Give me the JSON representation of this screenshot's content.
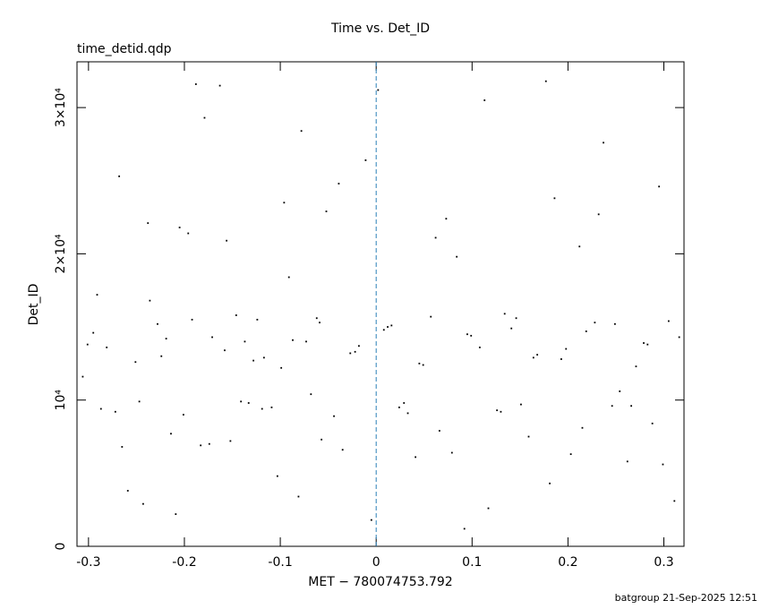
{
  "chart_data": {
    "type": "scatter",
    "title": "Time vs. Det_ID",
    "subtitle": "time_detid.qdp",
    "xlabel": "MET − 780074753.792",
    "ylabel": "Det_ID",
    "annotation": "batgroup 21-Sep-2025 12:51",
    "xlim": [
      -0.312,
      0.321
    ],
    "ylim": [
      0,
      33130
    ],
    "xticks": [
      -0.3,
      -0.2,
      -0.1,
      0,
      0.1,
      0.2,
      0.3
    ],
    "yticks": [
      0,
      {
        "value": 10000,
        "label": "10⁴"
      },
      {
        "value": 20000,
        "label": "2×10⁴"
      },
      {
        "value": 30000,
        "label": "3×10⁴"
      }
    ],
    "reference_line": {
      "x": 0,
      "color": "#2a7fb8"
    },
    "color": "#000000",
    "x": [
      -0.301,
      -0.287,
      -0.265,
      -0.243,
      -0.228,
      -0.205,
      -0.188,
      -0.171,
      -0.152,
      -0.133,
      -0.117,
      -0.096,
      -0.081,
      -0.062,
      -0.044,
      -0.027,
      -0.011,
      0.008,
      0.024,
      0.041,
      0.057,
      0.073,
      0.092,
      0.108,
      0.126,
      0.141,
      0.159,
      0.177,
      0.193,
      0.212,
      0.228,
      0.246,
      0.262,
      0.279,
      0.295,
      0.311,
      -0.295,
      -0.272,
      -0.251,
      -0.236,
      -0.214,
      -0.196,
      -0.179,
      -0.158,
      -0.141,
      -0.124,
      -0.103,
      -0.087,
      -0.068,
      -0.052,
      -0.035,
      -0.018,
      0.002,
      0.016,
      0.033,
      0.049,
      0.066,
      0.084,
      0.099,
      0.117,
      0.134,
      0.151,
      0.168,
      0.186,
      0.203,
      0.219,
      0.237,
      0.254,
      0.271,
      0.288,
      0.305,
      -0.306,
      -0.281,
      -0.259,
      -0.238,
      -0.219,
      -0.201,
      -0.183,
      -0.163,
      -0.146,
      -0.128,
      -0.109,
      -0.091,
      -0.073,
      -0.057,
      -0.039,
      -0.022,
      -0.005,
      0.012,
      0.029,
      0.045,
      0.062,
      0.079,
      0.095,
      0.113,
      0.13,
      0.146,
      0.164,
      0.181,
      0.198,
      0.215,
      0.232,
      0.249,
      0.266,
      0.283,
      0.299,
      0.316,
      -0.291,
      -0.268,
      -0.247,
      -0.224,
      -0.209,
      -0.192,
      -0.174,
      -0.156,
      -0.137,
      -0.119,
      -0.099,
      -0.078,
      -0.059
    ],
    "values": [
      13800,
      9400,
      6800,
      2900,
      15200,
      21800,
      31600,
      14300,
      7200,
      9800,
      12900,
      23500,
      3400,
      15600,
      8900,
      13200,
      26400,
      14800,
      9500,
      6100,
      15700,
      22400,
      1200,
      13600,
      9300,
      14900,
      7500,
      31800,
      12800,
      20500,
      15300,
      9600,
      5800,
      13900,
      24600,
      3100,
      14600,
      9200,
      12600,
      16800,
      7700,
      21400,
      29300,
      13400,
      9900,
      15500,
      4800,
      14100,
      10400,
      22900,
      6600,
      13700,
      31200,
      15100,
      9100,
      12400,
      7900,
      19800,
      14400,
      2600,
      15900,
      9700,
      13100,
      23800,
      6300,
      14700,
      27600,
      10600,
      12300,
      8400,
      15400,
      11600,
      13600,
      3800,
      22100,
      14200,
      9000,
      6900,
      31500,
      15800,
      12700,
      9500,
      18400,
      14000,
      7300,
      24800,
      13300,
      1800,
      15000,
      9800,
      12500,
      21100,
      6400,
      14500,
      30500,
      9200,
      15600,
      12900,
      4300,
      13500,
      8100,
      22700,
      15200,
      9600,
      13800,
      5600,
      14300,
      17200,
      25300,
      9900,
      13000,
      2200,
      15500,
      7000,
      20900,
      14000,
      9400,
      12200,
      28400,
      15300
    ]
  }
}
